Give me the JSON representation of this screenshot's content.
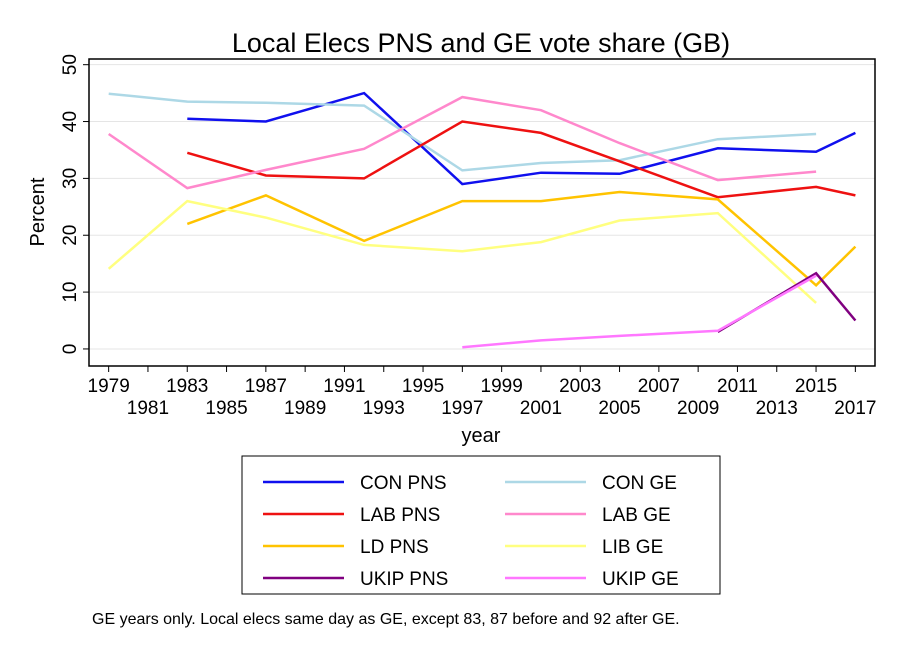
{
  "chart_data": {
    "type": "line",
    "title": "Local Elecs PNS and GE vote share (GB)",
    "xlabel": "year",
    "ylabel": "Percent",
    "xlim": [
      1978,
      2018
    ],
    "ylim": [
      -3,
      51
    ],
    "yticks": [
      0,
      10,
      20,
      30,
      40,
      50
    ],
    "xticks_top": [
      1979,
      1983,
      1987,
      1991,
      1995,
      1999,
      2003,
      2007,
      2011,
      2015
    ],
    "xticks_bottom": [
      1981,
      1985,
      1989,
      1993,
      1997,
      2001,
      2005,
      2009,
      2013,
      2017
    ],
    "grid": "horizontal",
    "legend_position": "bottom",
    "series": [
      {
        "name": "CON PNS",
        "color": "#1010ee",
        "points": [
          [
            1983,
            40.5
          ],
          [
            1987,
            40.0
          ],
          [
            1992,
            45.0
          ],
          [
            1997,
            29.0
          ],
          [
            2001,
            31.0
          ],
          [
            2005,
            30.8
          ],
          [
            2010,
            35.3
          ],
          [
            2015,
            34.7
          ],
          [
            2017,
            38.0
          ]
        ]
      },
      {
        "name": "CON GE",
        "color": "#add8e6",
        "points": [
          [
            1979,
            44.9
          ],
          [
            1983,
            43.5
          ],
          [
            1987,
            43.3
          ],
          [
            1992,
            42.8
          ],
          [
            1997,
            31.4
          ],
          [
            2001,
            32.7
          ],
          [
            2005,
            33.2
          ],
          [
            2010,
            36.9
          ],
          [
            2015,
            37.8
          ]
        ]
      },
      {
        "name": "LAB PNS",
        "color": "#ee1111",
        "points": [
          [
            1983,
            34.5
          ],
          [
            1987,
            30.5
          ],
          [
            1992,
            30.0
          ],
          [
            1997,
            40.0
          ],
          [
            2001,
            38.0
          ],
          [
            2005,
            33.0
          ],
          [
            2010,
            26.7
          ],
          [
            2015,
            28.5
          ],
          [
            2017,
            27.0
          ]
        ]
      },
      {
        "name": "LAB GE",
        "color": "#ff88cc",
        "points": [
          [
            1979,
            37.8
          ],
          [
            1983,
            28.3
          ],
          [
            1987,
            31.5
          ],
          [
            1992,
            35.2
          ],
          [
            1997,
            44.3
          ],
          [
            2001,
            42.0
          ],
          [
            2005,
            36.2
          ],
          [
            2010,
            29.7
          ],
          [
            2015,
            31.2
          ]
        ]
      },
      {
        "name": "LD PNS",
        "color": "#ffc300",
        "points": [
          [
            1983,
            22.0
          ],
          [
            1987,
            27.0
          ],
          [
            1992,
            19.0
          ],
          [
            1997,
            26.0
          ],
          [
            2001,
            26.0
          ],
          [
            2005,
            27.6
          ],
          [
            2010,
            26.3
          ],
          [
            2015,
            11.2
          ],
          [
            2017,
            18.0
          ]
        ]
      },
      {
        "name": "LIB GE",
        "color": "#ffff80",
        "points": [
          [
            1979,
            14.1
          ],
          [
            1983,
            26.0
          ],
          [
            1987,
            23.1
          ],
          [
            1992,
            18.3
          ],
          [
            1997,
            17.2
          ],
          [
            2001,
            18.8
          ],
          [
            2005,
            22.6
          ],
          [
            2010,
            23.9
          ],
          [
            2015,
            8.1
          ]
        ]
      },
      {
        "name": "UKIP PNS",
        "color": "#800080",
        "points": [
          [
            2010,
            3.0
          ],
          [
            2015,
            13.3
          ],
          [
            2017,
            5.0
          ]
        ]
      },
      {
        "name": "UKIP GE",
        "color": "#ff77ff",
        "points": [
          [
            1997,
            0.3
          ],
          [
            2001,
            1.5
          ],
          [
            2005,
            2.3
          ],
          [
            2010,
            3.2
          ],
          [
            2015,
            12.9
          ]
        ]
      }
    ],
    "note": "GE years only. Local elecs same day as GE, except 83, 87 before and 92 after GE."
  }
}
